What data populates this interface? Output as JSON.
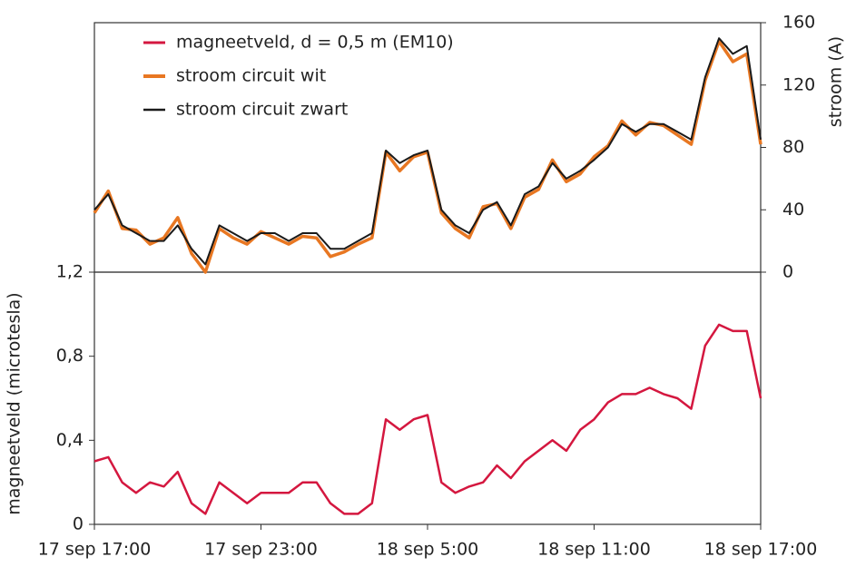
{
  "chart_data": [
    {
      "type": "line",
      "ylabel": "stroom (A)",
      "yaxis_side": "right",
      "legend": "upper left",
      "ylim": [
        0,
        160
      ],
      "yticks": [
        0,
        40,
        80,
        120,
        160
      ],
      "x": [
        "17 sep 17:00",
        "17 sep 17:30",
        "17 sep 18:00",
        "17 sep 18:30",
        "17 sep 19:00",
        "17 sep 19:30",
        "17 sep 20:00",
        "17 sep 20:30",
        "17 sep 21:00",
        "17 sep 21:30",
        "17 sep 22:00",
        "17 sep 22:30",
        "17 sep 23:00",
        "17 sep 23:30",
        "18 sep 0:00",
        "18 sep 0:30",
        "18 sep 1:00",
        "18 sep 1:30",
        "18 sep 2:00",
        "18 sep 2:30",
        "18 sep 3:00",
        "18 sep 3:30",
        "18 sep 4:00",
        "18 sep 4:30",
        "18 sep 5:00",
        "18 sep 5:30",
        "18 sep 6:00",
        "18 sep 6:30",
        "18 sep 7:00",
        "18 sep 7:30",
        "18 sep 8:00",
        "18 sep 8:30",
        "18 sep 9:00",
        "18 sep 9:30",
        "18 sep 10:00",
        "18 sep 10:30",
        "18 sep 11:00",
        "18 sep 11:30",
        "18 sep 12:00",
        "18 sep 12:30",
        "18 sep 13:00",
        "18 sep 13:30",
        "18 sep 14:00",
        "18 sep 14:30",
        "18 sep 15:00",
        "18 sep 15:30",
        "18 sep 16:00",
        "18 sep 16:30",
        "18 sep 17:00"
      ],
      "series": [
        {
          "name": "stroom circuit wit",
          "color": "#e87722",
          "width": 3.5,
          "values": [
            38,
            52,
            28,
            27,
            18,
            22,
            35,
            12,
            0,
            28,
            22,
            18,
            26,
            22,
            18,
            23,
            22,
            10,
            13,
            18,
            22,
            77,
            65,
            74,
            77,
            38,
            28,
            22,
            42,
            44,
            28,
            48,
            53,
            72,
            58,
            63,
            74,
            81,
            97,
            88,
            96,
            94,
            88,
            82,
            123,
            148,
            135,
            140,
            82
          ]
        },
        {
          "name": "stroom circuit zwart",
          "color": "#1a1a1a",
          "width": 2,
          "values": [
            40,
            50,
            30,
            25,
            20,
            20,
            30,
            15,
            5,
            30,
            25,
            20,
            25,
            25,
            20,
            25,
            25,
            15,
            15,
            20,
            25,
            78,
            70,
            75,
            78,
            40,
            30,
            25,
            40,
            45,
            30,
            50,
            55,
            70,
            60,
            65,
            72,
            80,
            95,
            90,
            95,
            95,
            90,
            85,
            125,
            150,
            140,
            145,
            85
          ]
        }
      ]
    },
    {
      "type": "line",
      "ylabel": "magneetveld (microtesla)",
      "yaxis_side": "left",
      "ylim": [
        0,
        1.2
      ],
      "yticks": [
        0,
        {
          "value": 0.4,
          "label": "0,4"
        },
        {
          "value": 0.8,
          "label": "0,8"
        },
        {
          "value": 1.2,
          "label": "1,2"
        }
      ],
      "x": [
        "17 sep 17:00",
        "17 sep 17:30",
        "17 sep 18:00",
        "17 sep 18:30",
        "17 sep 19:00",
        "17 sep 19:30",
        "17 sep 20:00",
        "17 sep 20:30",
        "17 sep 21:00",
        "17 sep 21:30",
        "17 sep 22:00",
        "17 sep 22:30",
        "17 sep 23:00",
        "17 sep 23:30",
        "18 sep 0:00",
        "18 sep 0:30",
        "18 sep 1:00",
        "18 sep 1:30",
        "18 sep 2:00",
        "18 sep 2:30",
        "18 sep 3:00",
        "18 sep 3:30",
        "18 sep 4:00",
        "18 sep 4:30",
        "18 sep 5:00",
        "18 sep 5:30",
        "18 sep 6:00",
        "18 sep 6:30",
        "18 sep 7:00",
        "18 sep 7:30",
        "18 sep 8:00",
        "18 sep 8:30",
        "18 sep 9:00",
        "18 sep 9:30",
        "18 sep 10:00",
        "18 sep 10:30",
        "18 sep 11:00",
        "18 sep 11:30",
        "18 sep 12:00",
        "18 sep 12:30",
        "18 sep 13:00",
        "18 sep 13:30",
        "18 sep 14:00",
        "18 sep 14:30",
        "18 sep 15:00",
        "18 sep 15:30",
        "18 sep 16:00",
        "18 sep 16:30",
        "18 sep 17:00"
      ],
      "xticks": [
        "17 sep 17:00",
        "17 sep 23:00",
        "18 sep 5:00",
        "18 sep 11:00",
        "18 sep 17:00"
      ],
      "series": [
        {
          "name": "magneetveld, d = 0,5 m (EM10)",
          "color": "#d4173f",
          "width": 2.5,
          "values": [
            0.3,
            0.32,
            0.2,
            0.15,
            0.2,
            0.18,
            0.25,
            0.1,
            0.05,
            0.2,
            0.15,
            0.1,
            0.15,
            0.15,
            0.15,
            0.2,
            0.2,
            0.1,
            0.05,
            0.05,
            0.1,
            0.5,
            0.45,
            0.5,
            0.52,
            0.2,
            0.15,
            0.18,
            0.2,
            0.28,
            0.22,
            0.3,
            0.35,
            0.4,
            0.35,
            0.45,
            0.5,
            0.58,
            0.62,
            0.62,
            0.65,
            0.62,
            0.6,
            0.55,
            0.85,
            0.95,
            0.92,
            0.92,
            0.6
          ]
        }
      ]
    }
  ]
}
